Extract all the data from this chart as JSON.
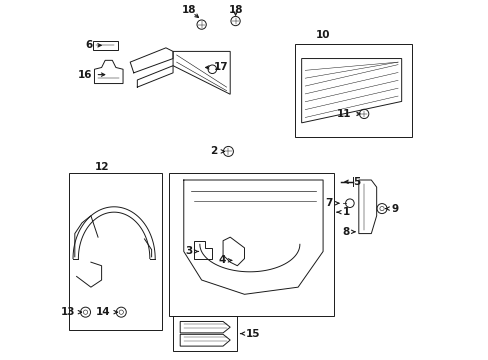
{
  "bg_color": "#ffffff",
  "line_color": "#1a1a1a",
  "label_fontsize": 7.5,
  "lw": 0.7
}
